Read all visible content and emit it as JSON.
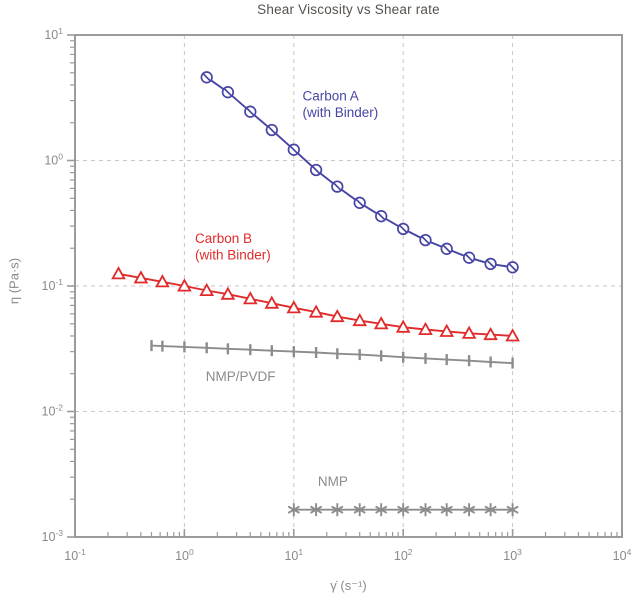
{
  "title": "Shear Viscosity vs Shear rate",
  "chart_data": {
    "type": "line",
    "title": "Shear Viscosity vs Shear rate",
    "xlabel": "γ̇ (s⁻¹)",
    "ylabel": "η (Pa·s)",
    "xscale": "log",
    "yscale": "log",
    "xlim": [
      0.1,
      10000
    ],
    "ylim": [
      0.001,
      10
    ],
    "grid": {
      "style": "dashed",
      "color": "#c6c6c6",
      "x_decades": [
        1,
        10,
        100,
        1000
      ],
      "y_decades": [
        1,
        0.1,
        0.01
      ]
    },
    "x_tick_exponents": [
      -1,
      0,
      1,
      2,
      3,
      4
    ],
    "y_tick_exponents": [
      1,
      0,
      -1,
      -2,
      -3
    ],
    "legend_position": "inline-labels",
    "axis_color": "#9b9b9b",
    "tick_label_color": "#8a8a8a",
    "series": [
      {
        "id": "carbon-a",
        "name": "Carbon A (with Binder)",
        "label_lines": [
          "Carbon A",
          "(with Binder)"
        ],
        "label_anchor_x": 12,
        "label_anchor_y": 3.0,
        "color": "#4745a4",
        "marker": "circle-slash",
        "x": [
          1.6,
          2.5,
          4,
          6.3,
          10,
          16,
          25,
          40,
          63,
          100,
          160,
          250,
          400,
          630,
          1000
        ],
        "y": [
          4.6,
          3.5,
          2.45,
          1.75,
          1.22,
          0.84,
          0.62,
          0.46,
          0.36,
          0.285,
          0.232,
          0.198,
          0.168,
          0.15,
          0.141
        ]
      },
      {
        "id": "carbon-b",
        "name": "Carbon B (with Binder)",
        "label_lines": [
          "Carbon B",
          "(with Binder)"
        ],
        "label_anchor_x": 1.25,
        "label_anchor_y": 0.22,
        "color": "#e02b2b",
        "marker": "triangle-up",
        "x": [
          0.25,
          0.4,
          0.63,
          1,
          1.6,
          2.5,
          4,
          6.3,
          10,
          16,
          25,
          40,
          63,
          100,
          160,
          250,
          400,
          630,
          1000
        ],
        "y": [
          0.125,
          0.116,
          0.108,
          0.1,
          0.092,
          0.086,
          0.079,
          0.073,
          0.067,
          0.062,
          0.057,
          0.053,
          0.05,
          0.047,
          0.045,
          0.0435,
          0.042,
          0.041,
          0.04
        ]
      },
      {
        "id": "nmp-pvdf",
        "name": "NMP/PVDF",
        "label_lines": [
          "NMP/PVDF"
        ],
        "label_anchor_x": 1.57,
        "label_anchor_y": 0.0175,
        "color": "#8c8c8c",
        "marker": "vbar",
        "x": [
          0.5,
          0.63,
          1,
          1.6,
          2.5,
          4,
          6.3,
          10,
          16,
          25,
          40,
          63,
          100,
          160,
          250,
          400,
          630,
          1000
        ],
        "y": [
          0.0335,
          0.0332,
          0.0327,
          0.0322,
          0.0316,
          0.0311,
          0.0305,
          0.03,
          0.0295,
          0.0289,
          0.0284,
          0.0278,
          0.0271,
          0.0265,
          0.0259,
          0.0254,
          0.0248,
          0.0243
        ]
      },
      {
        "id": "nmp",
        "name": "NMP",
        "label_lines": [
          "NMP"
        ],
        "label_anchor_x": 16.6,
        "label_anchor_y": 0.00255,
        "color": "#8c8c8c",
        "marker": "asterisk",
        "x": [
          10,
          16,
          25,
          40,
          63,
          100,
          160,
          250,
          400,
          630,
          1000
        ],
        "y": [
          0.00165,
          0.00165,
          0.00165,
          0.00165,
          0.00165,
          0.00165,
          0.00165,
          0.00165,
          0.00165,
          0.00165,
          0.00165
        ]
      }
    ]
  }
}
